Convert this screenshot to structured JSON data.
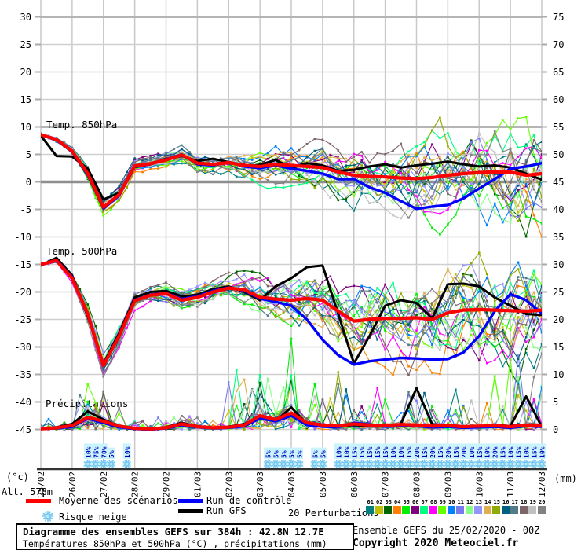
{
  "axes": {
    "left_unit": "(°c)",
    "right_unit": "(mm)",
    "alt_label": "Alt. 578m",
    "left_ticks": [
      30,
      25,
      20,
      15,
      10,
      5,
      0,
      -5,
      -10,
      -15,
      -20,
      -25,
      -30,
      -35,
      -40,
      -45
    ],
    "right_ticks": [
      75,
      70,
      65,
      60,
      55,
      50,
      45,
      40,
      35,
      30,
      25,
      20,
      15,
      10,
      5,
      0
    ],
    "dates": [
      "25/02",
      "26/02",
      "27/02",
      "28/02",
      "29/02",
      "01/03",
      "02/03",
      "03/03",
      "04/03",
      "05/03",
      "06/03",
      "07/03",
      "08/03",
      "09/03",
      "10/03",
      "11/03",
      "12/03"
    ]
  },
  "panel_labels": [
    "Temp. 850hPa",
    "Temp. 500hPa",
    "Précipitations"
  ],
  "legend": {
    "mean": {
      "label": "Moyenne des scénarios",
      "color": "#ff0000"
    },
    "control": {
      "label": "Run de contrôle",
      "color": "#0000ff"
    },
    "gfs": {
      "label": "Run GFS",
      "color": "#000000"
    },
    "snow": {
      "label": "Risque neige",
      "flake_color": "#6ec7ef"
    },
    "perturbations": {
      "label": "20 Perturbations",
      "numbers": [
        "01",
        "02",
        "03",
        "04",
        "05",
        "06",
        "07",
        "08",
        "09",
        "10",
        "11",
        "12",
        "13",
        "14",
        "15",
        "16",
        "17",
        "18",
        "19",
        "20"
      ],
      "colors": [
        "#008080",
        "#c0c000",
        "#006400",
        "#ff8000",
        "#00ee00",
        "#7d007d",
        "#00ff80",
        "#ff00ff",
        "#66ff00",
        "#0080ff",
        "#7a78ee",
        "#86ff86",
        "#9494ff",
        "#dfae4f",
        "#8faa00",
        "#00607d",
        "#537c8a",
        "#7d6468",
        "#c0c0c0",
        "#828282"
      ]
    }
  },
  "title_box": {
    "line1": "Diagramme des ensembles GEFS sur 384h : 42.8N 12.7E",
    "line2": "Températures 850hPa et 500hPa (°C) , précipitations (mm)"
  },
  "footer_right": {
    "run_info": "Ensemble GEFS du 25/02/2020 - 00Z",
    "copyright": "Copyright 2020 Meteociel.fr"
  },
  "chart_data": [
    {
      "type": "line",
      "panel": "temp_850hPa",
      "title": "Temp. 850hPa",
      "ylabel": "°C",
      "x_step_hours": 12,
      "x_range": [
        "25/02 00h",
        "12/03 00h"
      ],
      "ylim_shown": [
        -10,
        15
      ],
      "series": [
        {
          "name": "Moyenne des scénarios",
          "color": "#ff0000",
          "values": [
            8.6,
            7.7,
            5.6,
            1.5,
            -4.6,
            -2.3,
            2.9,
            3.3,
            4.0,
            4.9,
            3.4,
            3.2,
            3.5,
            3.0,
            2.8,
            3.2,
            3.0,
            2.8,
            2.6,
            1.8,
            1.2,
            1.0,
            0.9,
            0.7,
            0.6,
            0.8,
            1.2,
            1.5,
            1.7,
            1.8,
            1.8,
            1.2,
            1.5
          ]
        },
        {
          "name": "Run de contrôle",
          "color": "#0000ff",
          "values": [
            8.6,
            7.6,
            5.5,
            1.2,
            -4.8,
            -2.5,
            2.8,
            3.2,
            4.1,
            5.0,
            3.2,
            3.0,
            3.6,
            2.8,
            2.5,
            3.0,
            2.4,
            2.0,
            1.5,
            0.5,
            0.5,
            -1.0,
            -2.0,
            -3.5,
            -4.9,
            -4.5,
            -4.2,
            -3.0,
            -1.2,
            0.5,
            2.4,
            2.8,
            3.4
          ]
        },
        {
          "name": "Run GFS",
          "color": "#000000",
          "values": [
            8.4,
            4.7,
            4.6,
            2.4,
            -3.2,
            -2.0,
            2.7,
            3.2,
            4.2,
            4.7,
            3.8,
            4.2,
            3.6,
            2.8,
            3.1,
            4.0,
            2.5,
            3.4,
            3.0,
            2.0,
            2.2,
            2.8,
            3.2,
            2.6,
            3.0,
            3.3,
            3.7,
            3.2,
            2.8,
            3.0,
            2.6,
            1.5,
            0.4
          ]
        }
      ],
      "ensemble": {
        "count": 20,
        "envelope": [
          0.2,
          0.3,
          0.4,
          0.7,
          1.0,
          0.9,
          0.8,
          0.8,
          0.9,
          1.0,
          1.1,
          1.2,
          1.4,
          1.6,
          1.8,
          2.0,
          2.2,
          2.5,
          2.8,
          3.1,
          3.4,
          3.7,
          4.0,
          4.4,
          4.8,
          5.2,
          5.6,
          6.0,
          6.3,
          6.6,
          7.0,
          7.3,
          7.6
        ]
      }
    },
    {
      "type": "line",
      "panel": "temp_500hPa",
      "title": "Temp. 500hPa",
      "ylabel": "°C",
      "x_step_hours": 12,
      "x_range": [
        "25/02 00h",
        "12/03 00h"
      ],
      "ylim_shown": [
        -35,
        -10
      ],
      "series": [
        {
          "name": "Moyenne des scénarios",
          "color": "#ff0000",
          "values": [
            -15.0,
            -14.3,
            -17.5,
            -24.0,
            -33.4,
            -28.0,
            -21.6,
            -20.6,
            -20.3,
            -21.5,
            -21.0,
            -20.0,
            -19.3,
            -19.6,
            -21.0,
            -21.3,
            -21.5,
            -21.2,
            -21.5,
            -23.5,
            -25.3,
            -25.0,
            -24.8,
            -24.8,
            -24.7,
            -25.0,
            -23.8,
            -23.3,
            -23.2,
            -23.3,
            -23.4,
            -23.5,
            -23.3
          ]
        },
        {
          "name": "Run de contrôle",
          "color": "#0000ff",
          "values": [
            -15.1,
            -14.2,
            -17.3,
            -24.2,
            -33.2,
            -28.0,
            -21.5,
            -20.5,
            -20.2,
            -21.3,
            -20.8,
            -19.8,
            -19.2,
            -19.8,
            -21.2,
            -21.8,
            -22.5,
            -25.0,
            -28.7,
            -31.5,
            -33.2,
            -32.6,
            -32.3,
            -32.0,
            -32.1,
            -32.3,
            -32.2,
            -31.0,
            -28.0,
            -23.5,
            -20.4,
            -21.5,
            -23.9
          ]
        },
        {
          "name": "Run GFS",
          "color": "#000000",
          "values": [
            -15.2,
            -13.8,
            -17.0,
            -24.5,
            -33.0,
            -27.5,
            -21.0,
            -20.0,
            -19.8,
            -20.8,
            -20.5,
            -19.5,
            -19.0,
            -20.0,
            -21.5,
            -19.0,
            -17.5,
            -15.5,
            -15.2,
            -24.0,
            -33.0,
            -28.0,
            -22.5,
            -21.5,
            -22.0,
            -24.8,
            -18.6,
            -18.5,
            -19.0,
            -21.0,
            -22.5,
            -24.0,
            -24.2
          ]
        }
      ],
      "ensemble": {
        "count": 20,
        "envelope": [
          0.2,
          0.3,
          0.5,
          0.9,
          1.3,
          1.1,
          1.0,
          1.0,
          1.1,
          1.2,
          1.3,
          1.5,
          1.7,
          2.0,
          2.3,
          2.6,
          3.0,
          3.4,
          3.8,
          4.2,
          4.6,
          5.0,
          5.3,
          5.6,
          5.9,
          6.1,
          6.3,
          6.5,
          6.6,
          6.7,
          6.8,
          6.9,
          7.0
        ]
      }
    },
    {
      "type": "line",
      "panel": "precipitations",
      "title": "Précipitations",
      "ylabel": "mm",
      "x_step_hours": 12,
      "x_range": [
        "25/02 00h",
        "12/03 00h"
      ],
      "ylim_shown": [
        0,
        15
      ],
      "series": [
        {
          "name": "Moyenne des scénarios",
          "color": "#ff0000",
          "values": [
            0.1,
            0.3,
            0.7,
            2.2,
            1.5,
            0.6,
            0.2,
            0.1,
            0.3,
            1.0,
            0.5,
            0.3,
            0.4,
            0.8,
            2.5,
            1.8,
            3.0,
            1.2,
            0.8,
            0.6,
            1.0,
            0.8,
            0.7,
            0.9,
            0.8,
            0.6,
            0.7,
            0.5,
            0.6,
            0.7,
            0.5,
            0.8,
            0.7
          ]
        },
        {
          "name": "Run de contrôle",
          "color": "#0000ff",
          "values": [
            0.1,
            0.2,
            0.5,
            2.0,
            1.2,
            0.4,
            0.1,
            0.0,
            0.2,
            0.8,
            0.4,
            0.2,
            0.3,
            0.6,
            2.0,
            1.5,
            2.5,
            0.8,
            0.5,
            0.4,
            1.2,
            0.9,
            0.5,
            0.7,
            0.6,
            0.4,
            0.5,
            0.3,
            0.4,
            0.5,
            0.3,
            0.6,
            0.5
          ]
        },
        {
          "name": "Run GFS",
          "color": "#000000",
          "values": [
            0.2,
            0.4,
            1.0,
            3.3,
            1.8,
            0.5,
            0.1,
            0.1,
            0.4,
            1.2,
            0.6,
            0.2,
            0.5,
            1.0,
            2.0,
            1.5,
            4.0,
            1.0,
            0.6,
            0.5,
            0.8,
            0.6,
            0.5,
            1.0,
            7.5,
            1.0,
            0.5,
            0.4,
            0.5,
            0.8,
            0.6,
            6.0,
            0.5
          ]
        }
      ],
      "ensemble": {
        "count": 20,
        "spike_max": 16.5
      }
    }
  ],
  "snow_risk": {
    "label_color": "#0000bb",
    "events": [
      {
        "t": 6,
        "pct": "10%"
      },
      {
        "t": 7,
        "pct": "75%"
      },
      {
        "t": 8,
        "pct": "70%"
      },
      {
        "t": 9,
        "pct": "5%"
      },
      {
        "t": 11,
        "pct": "10%"
      },
      {
        "t": 29,
        "pct": "5%"
      },
      {
        "t": 30,
        "pct": "5%"
      },
      {
        "t": 31,
        "pct": "5%"
      },
      {
        "t": 32,
        "pct": "5%"
      },
      {
        "t": 33,
        "pct": "5%"
      },
      {
        "t": 35,
        "pct": "5%"
      },
      {
        "t": 36,
        "pct": "5%"
      },
      {
        "t": 38,
        "pct": "10%"
      },
      {
        "t": 39,
        "pct": "10%"
      },
      {
        "t": 40,
        "pct": "15%"
      },
      {
        "t": 41,
        "pct": "15%"
      },
      {
        "t": 42,
        "pct": "15%"
      },
      {
        "t": 43,
        "pct": "15%"
      },
      {
        "t": 44,
        "pct": "15%"
      },
      {
        "t": 45,
        "pct": "10%"
      },
      {
        "t": 46,
        "pct": "10%"
      },
      {
        "t": 47,
        "pct": "15%"
      },
      {
        "t": 48,
        "pct": "20%"
      },
      {
        "t": 49,
        "pct": "15%"
      },
      {
        "t": 50,
        "pct": "20%"
      },
      {
        "t": 51,
        "pct": "15%"
      },
      {
        "t": 52,
        "pct": "20%"
      },
      {
        "t": 53,
        "pct": "15%"
      },
      {
        "t": 54,
        "pct": "20%"
      },
      {
        "t": 55,
        "pct": "10%"
      },
      {
        "t": 56,
        "pct": "15%"
      },
      {
        "t": 57,
        "pct": "10%"
      },
      {
        "t": 58,
        "pct": "20%"
      },
      {
        "t": 59,
        "pct": "15%"
      },
      {
        "t": 60,
        "pct": "10%"
      },
      {
        "t": 61,
        "pct": "15%"
      },
      {
        "t": 62,
        "pct": "10%"
      },
      {
        "t": 63,
        "pct": "15%"
      },
      {
        "t": 64,
        "pct": "10%"
      }
    ]
  }
}
